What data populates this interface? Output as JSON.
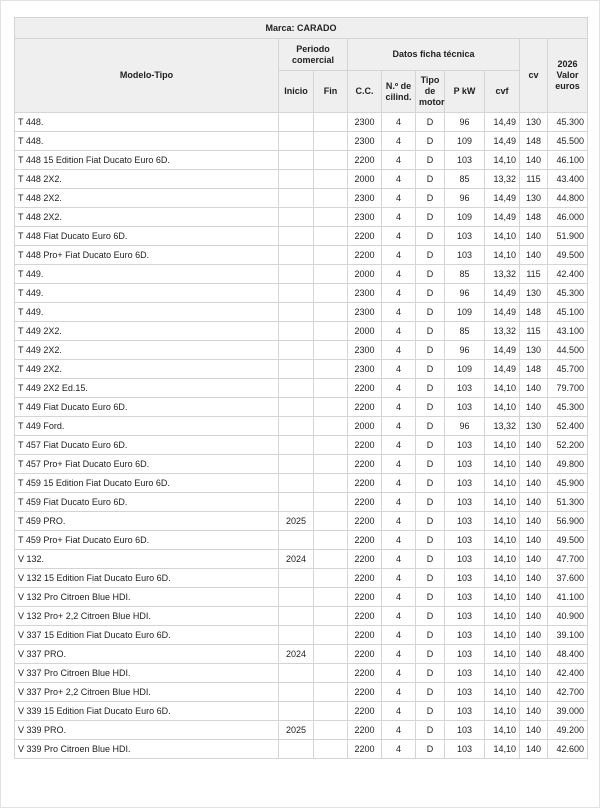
{
  "header": {
    "brand": "Marca: CARADO",
    "model_type": "Modelo-Tipo",
    "commercial_period": "Periodo comercial",
    "start": "Inicio",
    "end": "Fin",
    "tech_data": "Datos ficha técnica",
    "cc": "C.C.",
    "cylinders": "N.º de cilind.",
    "engine_type": "Tipo de motor",
    "pkw": "P kW",
    "cvf": "cvf",
    "cv": "cv",
    "value": "2026 Valor euros"
  },
  "rows": [
    [
      "T 448.",
      "",
      "",
      "2300",
      "4",
      "D",
      "96",
      "14,49",
      "130",
      "45.300"
    ],
    [
      "T 448.",
      "",
      "",
      "2300",
      "4",
      "D",
      "109",
      "14,49",
      "148",
      "45.500"
    ],
    [
      "T 448 15 Edition Fiat Ducato Euro 6D.",
      "",
      "",
      "2200",
      "4",
      "D",
      "103",
      "14,10",
      "140",
      "46.100"
    ],
    [
      "T 448 2X2.",
      "",
      "",
      "2000",
      "4",
      "D",
      "85",
      "13,32",
      "115",
      "43.400"
    ],
    [
      "T 448 2X2.",
      "",
      "",
      "2300",
      "4",
      "D",
      "96",
      "14,49",
      "130",
      "44.800"
    ],
    [
      "T 448 2X2.",
      "",
      "",
      "2300",
      "4",
      "D",
      "109",
      "14,49",
      "148",
      "46.000"
    ],
    [
      "T 448 Fiat Ducato Euro 6D.",
      "",
      "",
      "2200",
      "4",
      "D",
      "103",
      "14,10",
      "140",
      "51.900"
    ],
    [
      "T 448 Pro+ Fiat Ducato Euro 6D.",
      "",
      "",
      "2200",
      "4",
      "D",
      "103",
      "14,10",
      "140",
      "49.500"
    ],
    [
      "T 449.",
      "",
      "",
      "2000",
      "4",
      "D",
      "85",
      "13,32",
      "115",
      "42.400"
    ],
    [
      "T 449.",
      "",
      "",
      "2300",
      "4",
      "D",
      "96",
      "14,49",
      "130",
      "45.300"
    ],
    [
      "T 449.",
      "",
      "",
      "2300",
      "4",
      "D",
      "109",
      "14,49",
      "148",
      "45.100"
    ],
    [
      "T 449 2X2.",
      "",
      "",
      "2000",
      "4",
      "D",
      "85",
      "13,32",
      "115",
      "43.100"
    ],
    [
      "T 449 2X2.",
      "",
      "",
      "2300",
      "4",
      "D",
      "96",
      "14,49",
      "130",
      "44.500"
    ],
    [
      "T 449 2X2.",
      "",
      "",
      "2300",
      "4",
      "D",
      "109",
      "14,49",
      "148",
      "45.700"
    ],
    [
      "T 449 2X2 Ed.15.",
      "",
      "",
      "2200",
      "4",
      "D",
      "103",
      "14,10",
      "140",
      "79.700"
    ],
    [
      "T 449 Fiat Ducato Euro 6D.",
      "",
      "",
      "2200",
      "4",
      "D",
      "103",
      "14,10",
      "140",
      "45.300"
    ],
    [
      "T 449 Ford.",
      "",
      "",
      "2000",
      "4",
      "D",
      "96",
      "13,32",
      "130",
      "52.400"
    ],
    [
      "T 457 Fiat Ducato Euro 6D.",
      "",
      "",
      "2200",
      "4",
      "D",
      "103",
      "14,10",
      "140",
      "52.200"
    ],
    [
      "T 457 Pro+ Fiat Ducato Euro 6D.",
      "",
      "",
      "2200",
      "4",
      "D",
      "103",
      "14,10",
      "140",
      "49.800"
    ],
    [
      "T 459 15 Edition Fiat Ducato Euro 6D.",
      "",
      "",
      "2200",
      "4",
      "D",
      "103",
      "14,10",
      "140",
      "45.900"
    ],
    [
      "T 459 Fiat Ducato Euro 6D.",
      "",
      "",
      "2200",
      "4",
      "D",
      "103",
      "14,10",
      "140",
      "51.300"
    ],
    [
      "T 459 PRO.",
      "2025",
      "",
      "2200",
      "4",
      "D",
      "103",
      "14,10",
      "140",
      "56.900"
    ],
    [
      "T 459 Pro+ Fiat Ducato Euro 6D.",
      "",
      "",
      "2200",
      "4",
      "D",
      "103",
      "14,10",
      "140",
      "49.500"
    ],
    [
      "V 132.",
      "2024",
      "",
      "2200",
      "4",
      "D",
      "103",
      "14,10",
      "140",
      "47.700"
    ],
    [
      "V 132 15 Edition Fiat Ducato Euro 6D.",
      "",
      "",
      "2200",
      "4",
      "D",
      "103",
      "14,10",
      "140",
      "37.600"
    ],
    [
      "V 132 Pro Citroen Blue HDI.",
      "",
      "",
      "2200",
      "4",
      "D",
      "103",
      "14,10",
      "140",
      "41.100"
    ],
    [
      "V 132 Pro+ 2,2 Citroen Blue HDI.",
      "",
      "",
      "2200",
      "4",
      "D",
      "103",
      "14,10",
      "140",
      "40.900"
    ],
    [
      "V 337 15 Edition Fiat Ducato Euro 6D.",
      "",
      "",
      "2200",
      "4",
      "D",
      "103",
      "14,10",
      "140",
      "39.100"
    ],
    [
      "V 337 PRO.",
      "2024",
      "",
      "2200",
      "4",
      "D",
      "103",
      "14,10",
      "140",
      "48.400"
    ],
    [
      "V 337 Pro Citroen Blue HDI.",
      "",
      "",
      "2200",
      "4",
      "D",
      "103",
      "14,10",
      "140",
      "42.400"
    ],
    [
      "V 337 Pro+ 2,2 Citroen Blue HDI.",
      "",
      "",
      "2200",
      "4",
      "D",
      "103",
      "14,10",
      "140",
      "42.700"
    ],
    [
      "V 339 15 Edition Fiat Ducato Euro 6D.",
      "",
      "",
      "2200",
      "4",
      "D",
      "103",
      "14,10",
      "140",
      "39.000"
    ],
    [
      "V 339 PRO.",
      "2025",
      "",
      "2200",
      "4",
      "D",
      "103",
      "14,10",
      "140",
      "49.200"
    ],
    [
      "V 339 Pro Citroen Blue HDI.",
      "",
      "",
      "2200",
      "4",
      "D",
      "103",
      "14,10",
      "140",
      "42.600"
    ]
  ]
}
